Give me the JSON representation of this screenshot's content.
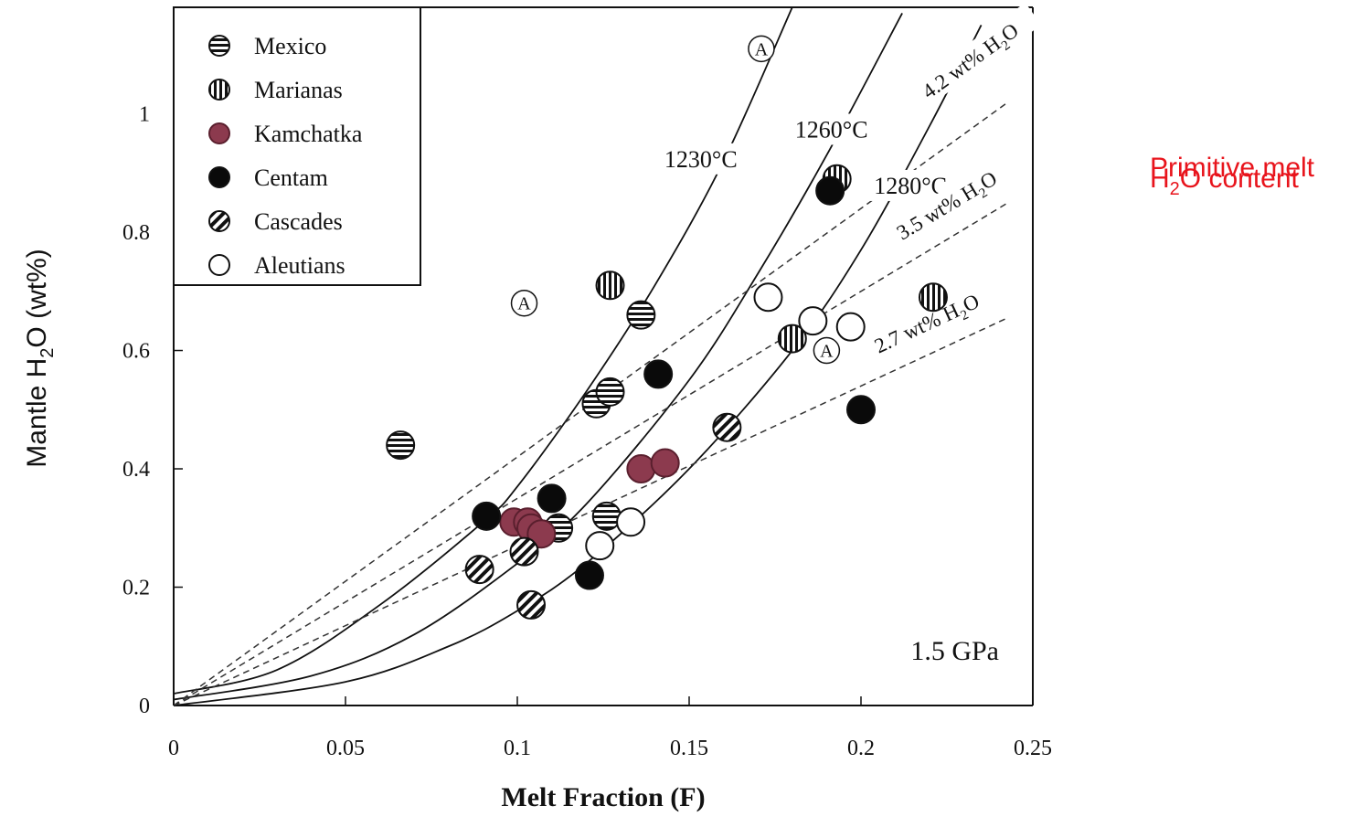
{
  "chart_data": {
    "type": "scatter",
    "xlabel": "Melt Fraction (F)",
    "ylabel_parts": [
      "Mantle H",
      "2",
      "O (wt%)"
    ],
    "xlim": [
      0,
      0.25
    ],
    "ylim": [
      0,
      1.18
    ],
    "x_ticks": [
      0,
      0.05,
      0.1,
      0.15,
      0.2,
      0.25
    ],
    "x_tick_labels": [
      "0",
      "0.05",
      "0.1",
      "0.15",
      "0.2",
      "0.25"
    ],
    "y_ticks": [
      0,
      0.2,
      0.4,
      0.6,
      0.8,
      1.0
    ],
    "y_tick_labels": [
      "0",
      "0.2",
      "0.4",
      "0.6",
      "0.8",
      "1"
    ],
    "pressure_label": "1.5 GPa",
    "legend_position": "top-left",
    "legend": [
      {
        "name": "Mexico",
        "style": "hstripe"
      },
      {
        "name": "Marianas",
        "style": "vstripe"
      },
      {
        "name": "Kamchatka",
        "style": "maroon"
      },
      {
        "name": "Centam",
        "style": "black"
      },
      {
        "name": "Cascades",
        "style": "dstripe"
      },
      {
        "name": "Aleutians",
        "style": "open"
      }
    ],
    "isotherms": [
      {
        "label": "1230°C",
        "label_x": 0.155,
        "label_y": 0.91,
        "points": [
          [
            0,
            0.02
          ],
          [
            0.03,
            0.06
          ],
          [
            0.06,
            0.17
          ],
          [
            0.09,
            0.31
          ],
          [
            0.1,
            0.37
          ],
          [
            0.12,
            0.53
          ],
          [
            0.14,
            0.71
          ],
          [
            0.16,
            0.92
          ],
          [
            0.18,
            1.18
          ]
        ]
      },
      {
        "label": "1260°C",
        "label_x": 0.193,
        "label_y": 0.96,
        "points": [
          [
            0,
            0.01
          ],
          [
            0.04,
            0.05
          ],
          [
            0.07,
            0.12
          ],
          [
            0.1,
            0.24
          ],
          [
            0.12,
            0.34
          ],
          [
            0.15,
            0.55
          ],
          [
            0.17,
            0.73
          ],
          [
            0.19,
            0.93
          ],
          [
            0.212,
            1.17
          ]
        ]
      },
      {
        "label": "1280°C",
        "label_x": 0.216,
        "label_y": 0.865,
        "points": [
          [
            0,
            0.0
          ],
          [
            0.05,
            0.04
          ],
          [
            0.08,
            0.1
          ],
          [
            0.1,
            0.16
          ],
          [
            0.12,
            0.24
          ],
          [
            0.15,
            0.4
          ],
          [
            0.18,
            0.6
          ],
          [
            0.2,
            0.77
          ],
          [
            0.22,
            0.98
          ],
          [
            0.235,
            1.15
          ]
        ]
      }
    ],
    "melt_lines": [
      {
        "label_parts": [
          "4.2 wt% H",
          "2",
          "O"
        ],
        "slope": 4.2,
        "x_end": 0.243,
        "label_x": 0.233,
        "label_y": 1.08
      },
      {
        "label_parts": [
          "3.5 wt% H",
          "2",
          "O"
        ],
        "slope": 3.5,
        "x_end": 0.243,
        "label_x": 0.226,
        "label_y": 0.835
      },
      {
        "label_parts": [
          "2.7 wt% H",
          "2",
          "O"
        ],
        "slope": 2.7,
        "x_end": 0.243,
        "label_x": 0.22,
        "label_y": 0.635
      }
    ],
    "series": [
      {
        "name": "Mexico",
        "style": "hstripe",
        "points": [
          [
            0.066,
            0.44
          ],
          [
            0.112,
            0.3
          ],
          [
            0.123,
            0.51
          ],
          [
            0.127,
            0.53
          ],
          [
            0.126,
            0.32
          ],
          [
            0.136,
            0.66
          ]
        ]
      },
      {
        "name": "Marianas",
        "style": "vstripe",
        "points": [
          [
            0.127,
            0.71
          ],
          [
            0.18,
            0.62
          ],
          [
            0.193,
            0.89
          ],
          [
            0.221,
            0.69
          ]
        ]
      },
      {
        "name": "Kamchatka",
        "style": "maroon",
        "points": [
          [
            0.099,
            0.31
          ],
          [
            0.103,
            0.31
          ],
          [
            0.104,
            0.3
          ],
          [
            0.107,
            0.29
          ],
          [
            0.136,
            0.4
          ],
          [
            0.143,
            0.41
          ]
        ]
      },
      {
        "name": "Centam",
        "style": "black",
        "points": [
          [
            0.091,
            0.32
          ],
          [
            0.11,
            0.35
          ],
          [
            0.121,
            0.22
          ],
          [
            0.141,
            0.56
          ],
          [
            0.191,
            0.87
          ],
          [
            0.2,
            0.5
          ]
        ]
      },
      {
        "name": "Cascades",
        "style": "dstripe",
        "points": [
          [
            0.089,
            0.23
          ],
          [
            0.102,
            0.26
          ],
          [
            0.104,
            0.17
          ],
          [
            0.161,
            0.47
          ]
        ]
      },
      {
        "name": "Aleutians",
        "style": "open",
        "points": [
          [
            0.124,
            0.27
          ],
          [
            0.133,
            0.31
          ],
          [
            0.173,
            0.69
          ],
          [
            0.186,
            0.65
          ],
          [
            0.197,
            0.64
          ]
        ]
      },
      {
        "name": "A",
        "style": "labelA",
        "points": [
          [
            0.102,
            0.68
          ],
          [
            0.171,
            1.11
          ],
          [
            0.19,
            0.6
          ]
        ]
      }
    ],
    "annotation_parts": [
      "Primitive melt",
      "H",
      "2",
      "O content"
    ],
    "annotation_color": "#e8141c"
  }
}
